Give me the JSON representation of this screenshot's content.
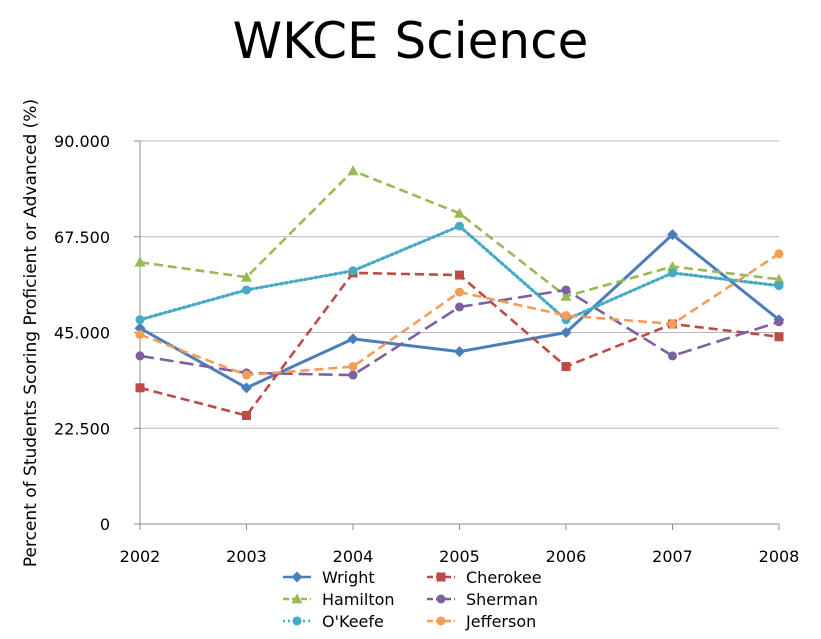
{
  "chart_data": {
    "type": "line",
    "title": "WKCE Science",
    "xlabel": "",
    "ylabel": "Percent of Students Scoring Proficient or Advanced (%)",
    "categories": [
      "2002",
      "2003",
      "2004",
      "2005",
      "2006",
      "2007",
      "2008"
    ],
    "ylim": [
      0,
      90
    ],
    "yticks": [
      0,
      22.5,
      45,
      67.5,
      90
    ],
    "ytick_labels": [
      "0",
      "22.500",
      "45.000",
      "67.500",
      "90.000"
    ],
    "grid": "horizontal",
    "legend": "bottom",
    "series": [
      {
        "name": "Wright",
        "color": "#4a7ebb",
        "dash": "solid",
        "marker": "diamond",
        "values": [
          46.0,
          32.0,
          43.5,
          40.5,
          45.0,
          68.0,
          48.0
        ]
      },
      {
        "name": "Cherokee",
        "color": "#be4b48",
        "dash": "dashed",
        "marker": "square",
        "values": [
          32.0,
          25.5,
          59.0,
          58.5,
          37.0,
          47.0,
          44.0
        ]
      },
      {
        "name": "Hamilton",
        "color": "#98b954",
        "dash": "dashed",
        "marker": "triangle",
        "values": [
          61.5,
          58.0,
          83.0,
          73.0,
          53.5,
          60.5,
          57.5
        ]
      },
      {
        "name": "Sherman",
        "color": "#7d60a0",
        "dash": "longdash",
        "marker": "circle",
        "values": [
          39.5,
          35.5,
          35.0,
          51.0,
          55.0,
          39.5,
          47.5
        ]
      },
      {
        "name": "O'Keefe",
        "color": "#46aac5",
        "dash": "dotted",
        "marker": "circle",
        "values": [
          48.0,
          55.0,
          59.5,
          70.0,
          48.0,
          59.0,
          56.0
        ]
      },
      {
        "name": "Jefferson",
        "color": "#f59d56",
        "dash": "dashed",
        "marker": "circle",
        "values": [
          44.5,
          35.0,
          37.0,
          54.5,
          49.0,
          47.0,
          63.5
        ]
      }
    ]
  }
}
